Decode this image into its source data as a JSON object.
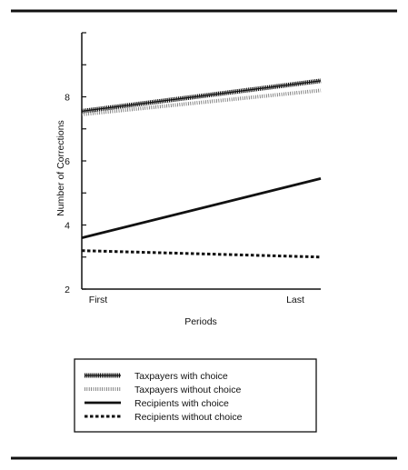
{
  "chart_data": {
    "type": "line",
    "xlabel": "Periods",
    "ylabel": "Number of Corrections",
    "categories": [
      "First",
      "Last"
    ],
    "ylim": [
      2,
      10
    ],
    "yticks": [
      2,
      4,
      6,
      8
    ],
    "grid": false,
    "legend_position": "bottom",
    "series": [
      {
        "name": "Taxpayers with choice",
        "values": [
          7.55,
          8.5
        ],
        "style": "dashdot-heavy"
      },
      {
        "name": "Taxpayers without choice",
        "values": [
          7.45,
          8.2
        ],
        "style": "dotted-light"
      },
      {
        "name": "Recipients with choice",
        "values": [
          3.6,
          5.45
        ],
        "style": "solid"
      },
      {
        "name": "Recipients without choice",
        "values": [
          3.2,
          3.0
        ],
        "style": "dashed"
      }
    ]
  },
  "colors": {
    "ink": "#111111",
    "background": "#ffffff"
  }
}
